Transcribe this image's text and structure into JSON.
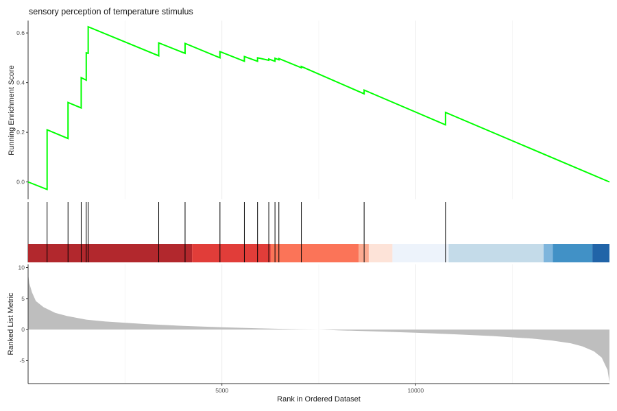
{
  "chart_data": {
    "type": "line",
    "title": "sensory perception of temperature stimulus",
    "xlabel": "Rank in Ordered Dataset",
    "xlim": [
      0,
      15000
    ],
    "x_ticks": [
      5000,
      10000
    ],
    "x_tick_labels": [
      "5000",
      "10000"
    ],
    "grid": "vertical only",
    "panels": {
      "enrichment": {
        "ylabel": "Running Enrichment Score",
        "ylim": [
          -0.07,
          0.65
        ],
        "y_ticks": [
          0.0,
          0.2,
          0.4,
          0.6
        ],
        "y_tick_labels": [
          "0.0",
          "0.2",
          "0.4",
          "0.6"
        ],
        "line_color": "#00ff00",
        "series": [
          {
            "x": [
              0,
              490,
              490,
              1030,
              1030,
              1370,
              1370,
              1500,
              1500,
              1550,
              1550,
              3370,
              3370,
              4050,
              4050,
              4950,
              4950,
              5580,
              5580,
              5920,
              5920,
              6210,
              6210,
              6370,
              6370,
              6470,
              6470,
              7050,
              7050,
              8670,
              8670,
              10770,
              10770,
              15000
            ],
            "y": [
              0.0,
              -0.03,
              0.21,
              0.175,
              0.32,
              0.298,
              0.42,
              0.41,
              0.52,
              0.518,
              0.625,
              0.508,
              0.56,
              0.518,
              0.558,
              0.5,
              0.525,
              0.486,
              0.505,
              0.486,
              0.5,
              0.49,
              0.495,
              0.486,
              0.498,
              0.492,
              0.497,
              0.46,
              0.465,
              0.355,
              0.37,
              0.23,
              0.28,
              0.0
            ]
          }
        ]
      },
      "hits": {
        "gene_ranks": [
          490,
          1030,
          1370,
          1500,
          1550,
          3370,
          4050,
          4950,
          5580,
          5920,
          6210,
          6370,
          6470,
          7050,
          8670,
          10770
        ]
      },
      "ranked_metric": {
        "ylabel": "Ranked List Metric",
        "ylim": [
          -8.7,
          10.5
        ],
        "y_ticks": [
          -5,
          0,
          5,
          10
        ],
        "y_tick_labels": [
          "-5",
          "0",
          "5",
          "10"
        ],
        "fill_color": "#bebebe",
        "x": [
          0,
          30,
          100,
          200,
          400,
          700,
          1000,
          1500,
          2000,
          3000,
          4000,
          5000,
          6000,
          7000,
          7500,
          8000,
          9000,
          10000,
          11000,
          12000,
          13000,
          13500,
          14000,
          14300,
          14600,
          14800,
          14950,
          15000
        ],
        "y": [
          9.0,
          7.5,
          6.0,
          4.6,
          3.6,
          2.7,
          2.2,
          1.6,
          1.3,
          0.9,
          0.6,
          0.38,
          0.2,
          0.05,
          0.0,
          -0.12,
          -0.3,
          -0.5,
          -0.75,
          -1.05,
          -1.45,
          -1.75,
          -2.2,
          -2.7,
          -3.5,
          -4.5,
          -6.5,
          -8.5
        ]
      }
    },
    "color_bands": [
      {
        "start": 0,
        "end": 4230,
        "color": "#b2282d"
      },
      {
        "start": 4230,
        "end": 6260,
        "color": "#e13d39"
      },
      {
        "start": 6260,
        "end": 8530,
        "color": "#fb7458"
      },
      {
        "start": 8530,
        "end": 8790,
        "color": "#fcab91"
      },
      {
        "start": 8790,
        "end": 9400,
        "color": "#fde3d8"
      },
      {
        "start": 9400,
        "end": 10850,
        "color": "#edf3fb"
      },
      {
        "start": 10850,
        "end": 13300,
        "color": "#c4dbe9"
      },
      {
        "start": 13300,
        "end": 13540,
        "color": "#7eb5dc"
      },
      {
        "start": 13540,
        "end": 14560,
        "color": "#4191c6"
      },
      {
        "start": 14560,
        "end": 15000,
        "color": "#2164a8"
      }
    ]
  }
}
